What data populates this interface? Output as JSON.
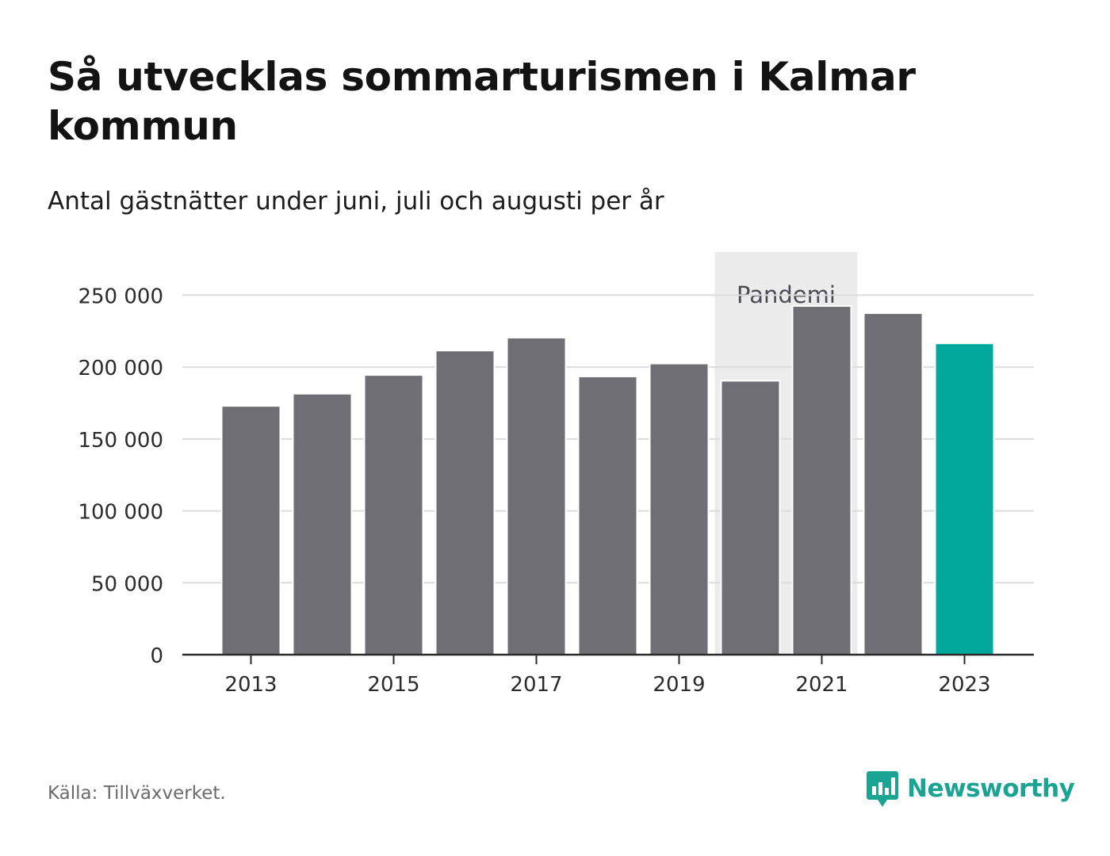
{
  "header": {
    "title": "Så utvecklas sommarturismen i Kalmar kommun",
    "subtitle": "Antal gästnätter under juni, juli och augusti per år"
  },
  "footer": {
    "source": "Källa: Tillväxverket.",
    "brand_name": "Newsworthy",
    "brand_icon": "newsworthy-logo-icon"
  },
  "colors": {
    "bar": "#6f6e74",
    "highlight": "#02a89b",
    "band": "#ececec",
    "grid": "#dcdcdc",
    "axis": "#2a2a2a",
    "brand": "#1ba394"
  },
  "chart_data": {
    "type": "bar",
    "categories": [
      "2013",
      "2014",
      "2015",
      "2016",
      "2017",
      "2018",
      "2019",
      "2020",
      "2021",
      "2022",
      "2023"
    ],
    "values": [
      173000,
      181500,
      194500,
      211500,
      220500,
      193500,
      202500,
      190500,
      242500,
      237500,
      216500
    ],
    "highlight_category": "2023",
    "x_tick_labels": [
      "2013",
      "2015",
      "2017",
      "2019",
      "2021",
      "2023"
    ],
    "y_ticks": [
      0,
      50000,
      100000,
      150000,
      200000,
      250000
    ],
    "y_tick_labels": [
      "0",
      "50 000",
      "100 000",
      "150 000",
      "200 000",
      "250 000"
    ],
    "ylim": [
      0,
      280000
    ],
    "grid": true,
    "annotation": {
      "label": "Pandemi",
      "from": "2020",
      "to": "2021"
    }
  }
}
